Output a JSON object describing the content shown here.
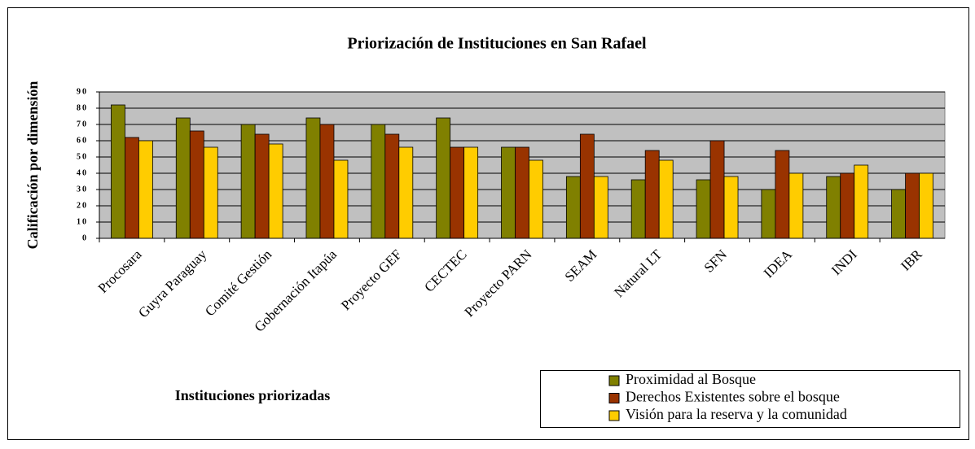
{
  "chart_data": {
    "type": "bar",
    "title": "Priorización de Instituciones en San Rafael",
    "y_label": "Calificación por dimensión",
    "x_label": "Instituciones priorizadas",
    "categories": [
      "Procosara",
      "Guyra Paraguay",
      "Comité Gestión",
      "Gobernación Itapúa",
      "Proyecto GEF",
      "CECTEC",
      "Proyecto PARN",
      "SEAM",
      "Natural LT",
      "SFN",
      "IDEA",
      "INDI",
      "IBR"
    ],
    "series": [
      {
        "name": "Proximidad al Bosque",
        "color": "#808000",
        "values": [
          82,
          74,
          70,
          74,
          70,
          74,
          56,
          38,
          36,
          36,
          30,
          38,
          30
        ]
      },
      {
        "name": "Derechos Existentes sobre el bosque",
        "color": "#993300",
        "values": [
          62,
          66,
          64,
          70,
          64,
          56,
          56,
          64,
          54,
          60,
          54,
          40,
          40
        ]
      },
      {
        "name": "Visión para la reserva y la comunidad",
        "color": "#ffcc00",
        "values": [
          60,
          56,
          58,
          48,
          56,
          56,
          48,
          38,
          48,
          38,
          40,
          45,
          40
        ]
      }
    ],
    "ylim": [
      0,
      90
    ],
    "yticks": [
      0,
      10,
      20,
      30,
      40,
      50,
      60,
      70,
      80,
      90
    ],
    "grid": true,
    "plot_background": "#c0c0c0"
  }
}
